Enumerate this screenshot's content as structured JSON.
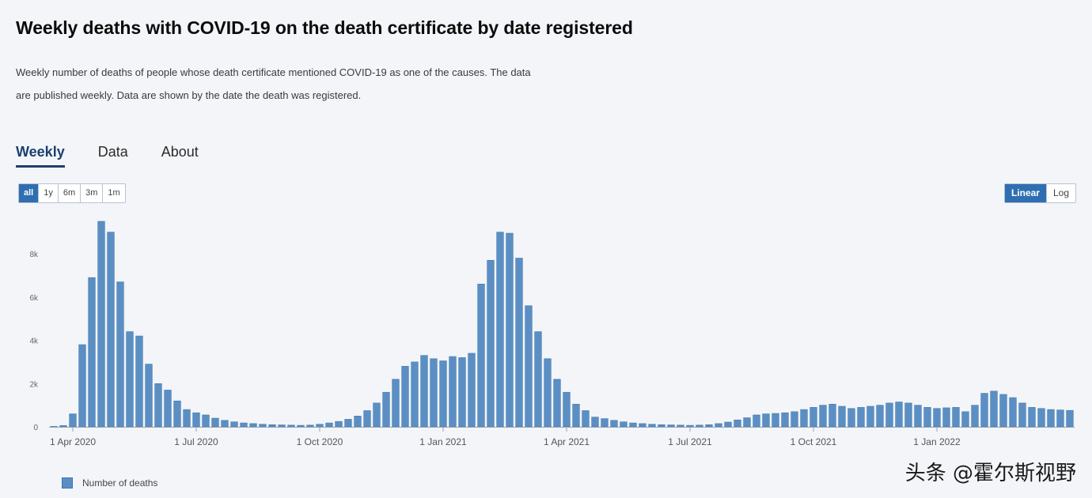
{
  "title": "Weekly deaths with COVID-19 on the death certificate by date registered",
  "subtitle": "Weekly number of deaths of people whose death certificate mentioned COVID-19 as one of the causes. The data are published weekly. Data are shown by the date the death was registered.",
  "tabs": [
    {
      "label": "Weekly",
      "active": true
    },
    {
      "label": "Data",
      "active": false
    },
    {
      "label": "About",
      "active": false
    }
  ],
  "range_buttons": [
    "all",
    "1y",
    "6m",
    "3m",
    "1m"
  ],
  "range_selected": "all",
  "scale_buttons": [
    "Linear",
    "Log"
  ],
  "scale_selected": "Linear",
  "watermark": "头条 @霍尔斯视野",
  "colors": {
    "bar": "#5b8fc4",
    "bar_stroke": "#3f77ae",
    "axis": "#888888"
  },
  "chart_data": {
    "type": "bar",
    "title": "Weekly deaths with COVID-19 on the death certificate by date registered",
    "xlabel": "",
    "ylabel": "",
    "ylim": [
      0,
      9500
    ],
    "y_ticks": [
      {
        "value": 0,
        "label": "0"
      },
      {
        "value": 2000,
        "label": "2k"
      },
      {
        "value": 4000,
        "label": "4k"
      },
      {
        "value": 6000,
        "label": "6k"
      },
      {
        "value": 8000,
        "label": "8k"
      }
    ],
    "x_ticks": [
      {
        "week_index": 2,
        "label": "1 Apr 2020"
      },
      {
        "week_index": 15,
        "label": "1 Jul 2020"
      },
      {
        "week_index": 28,
        "label": "1 Oct 2020"
      },
      {
        "week_index": 41,
        "label": "1 Jan 2021"
      },
      {
        "week_index": 54,
        "label": "1 Apr 2021"
      },
      {
        "week_index": 67,
        "label": "1 Jul 2021"
      },
      {
        "week_index": 80,
        "label": "1 Oct 2021"
      },
      {
        "week_index": 93,
        "label": "1 Jan 2022"
      }
    ],
    "series": [
      {
        "name": "Number of deaths",
        "values": [
          20,
          60,
          600,
          3800,
          6900,
          9500,
          9000,
          6700,
          4400,
          4200,
          2900,
          2000,
          1700,
          1200,
          800,
          650,
          550,
          400,
          300,
          230,
          180,
          150,
          120,
          100,
          90,
          80,
          70,
          80,
          120,
          180,
          250,
          350,
          500,
          750,
          1100,
          1600,
          2200,
          2800,
          3000,
          3300,
          3150,
          3050,
          3250,
          3200,
          3400,
          6600,
          7700,
          9000,
          8950,
          7800,
          5600,
          4400,
          3150,
          2200,
          1600,
          1050,
          750,
          450,
          380,
          300,
          230,
          180,
          150,
          120,
          100,
          90,
          80,
          70,
          80,
          100,
          150,
          220,
          320,
          420,
          550,
          600,
          620,
          650,
          700,
          800,
          900,
          1000,
          1050,
          950,
          850,
          900,
          950,
          1000,
          1100,
          1150,
          1100,
          1000,
          900,
          850,
          880,
          900,
          700,
          1000,
          1550,
          1650,
          1500,
          1350,
          1100,
          900,
          850,
          800,
          780,
          760
        ]
      }
    ],
    "legend": [
      {
        "label": "Number of deaths"
      }
    ],
    "legend_position": "bottom-left"
  }
}
